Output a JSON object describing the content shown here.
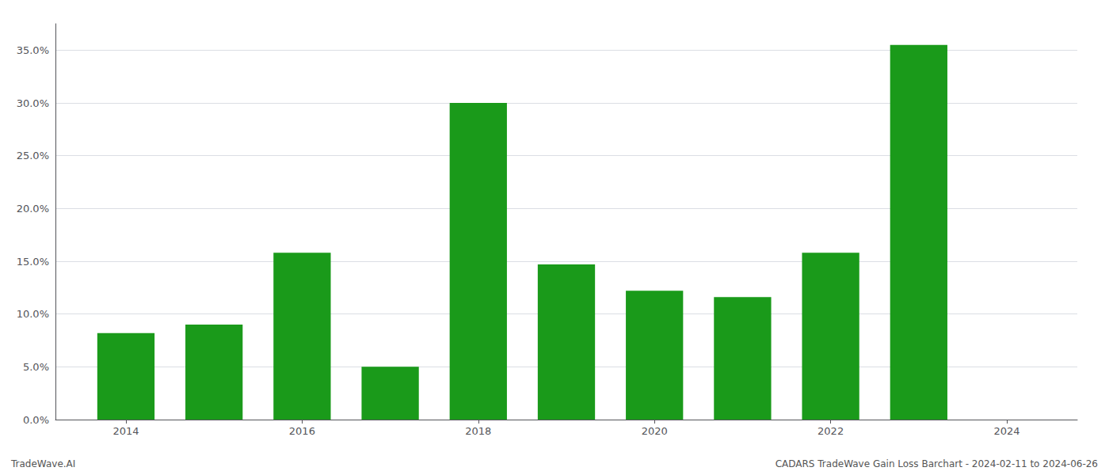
{
  "chart_data": {
    "type": "bar",
    "x": [
      2014,
      2015,
      2016,
      2017,
      2018,
      2019,
      2020,
      2021,
      2022,
      2023
    ],
    "values": [
      0.082,
      0.09,
      0.158,
      0.05,
      0.3,
      0.147,
      0.122,
      0.116,
      0.158,
      0.355
    ],
    "color": "#1a9a1a",
    "xlim": [
      2013.2,
      2024.8
    ],
    "xticks": [
      2014,
      2016,
      2018,
      2020,
      2022,
      2024
    ],
    "ylim": [
      0,
      0.375
    ],
    "yticks": [
      {
        "value": 0.0,
        "label": "0.0%"
      },
      {
        "value": 0.05,
        "label": "5.0%"
      },
      {
        "value": 0.1,
        "label": "10.0%"
      },
      {
        "value": 0.15,
        "label": "15.0%"
      },
      {
        "value": 0.2,
        "label": "20.0%"
      },
      {
        "value": 0.25,
        "label": "25.0%"
      },
      {
        "value": 0.3,
        "label": "30.0%"
      },
      {
        "value": 0.35,
        "label": "35.0%"
      }
    ],
    "grid": true,
    "annotations": [
      "TradeWave.AI",
      "CADARS TradeWave Gain Loss Barchart - 2024-02-11 to 2024-06-26"
    ]
  }
}
